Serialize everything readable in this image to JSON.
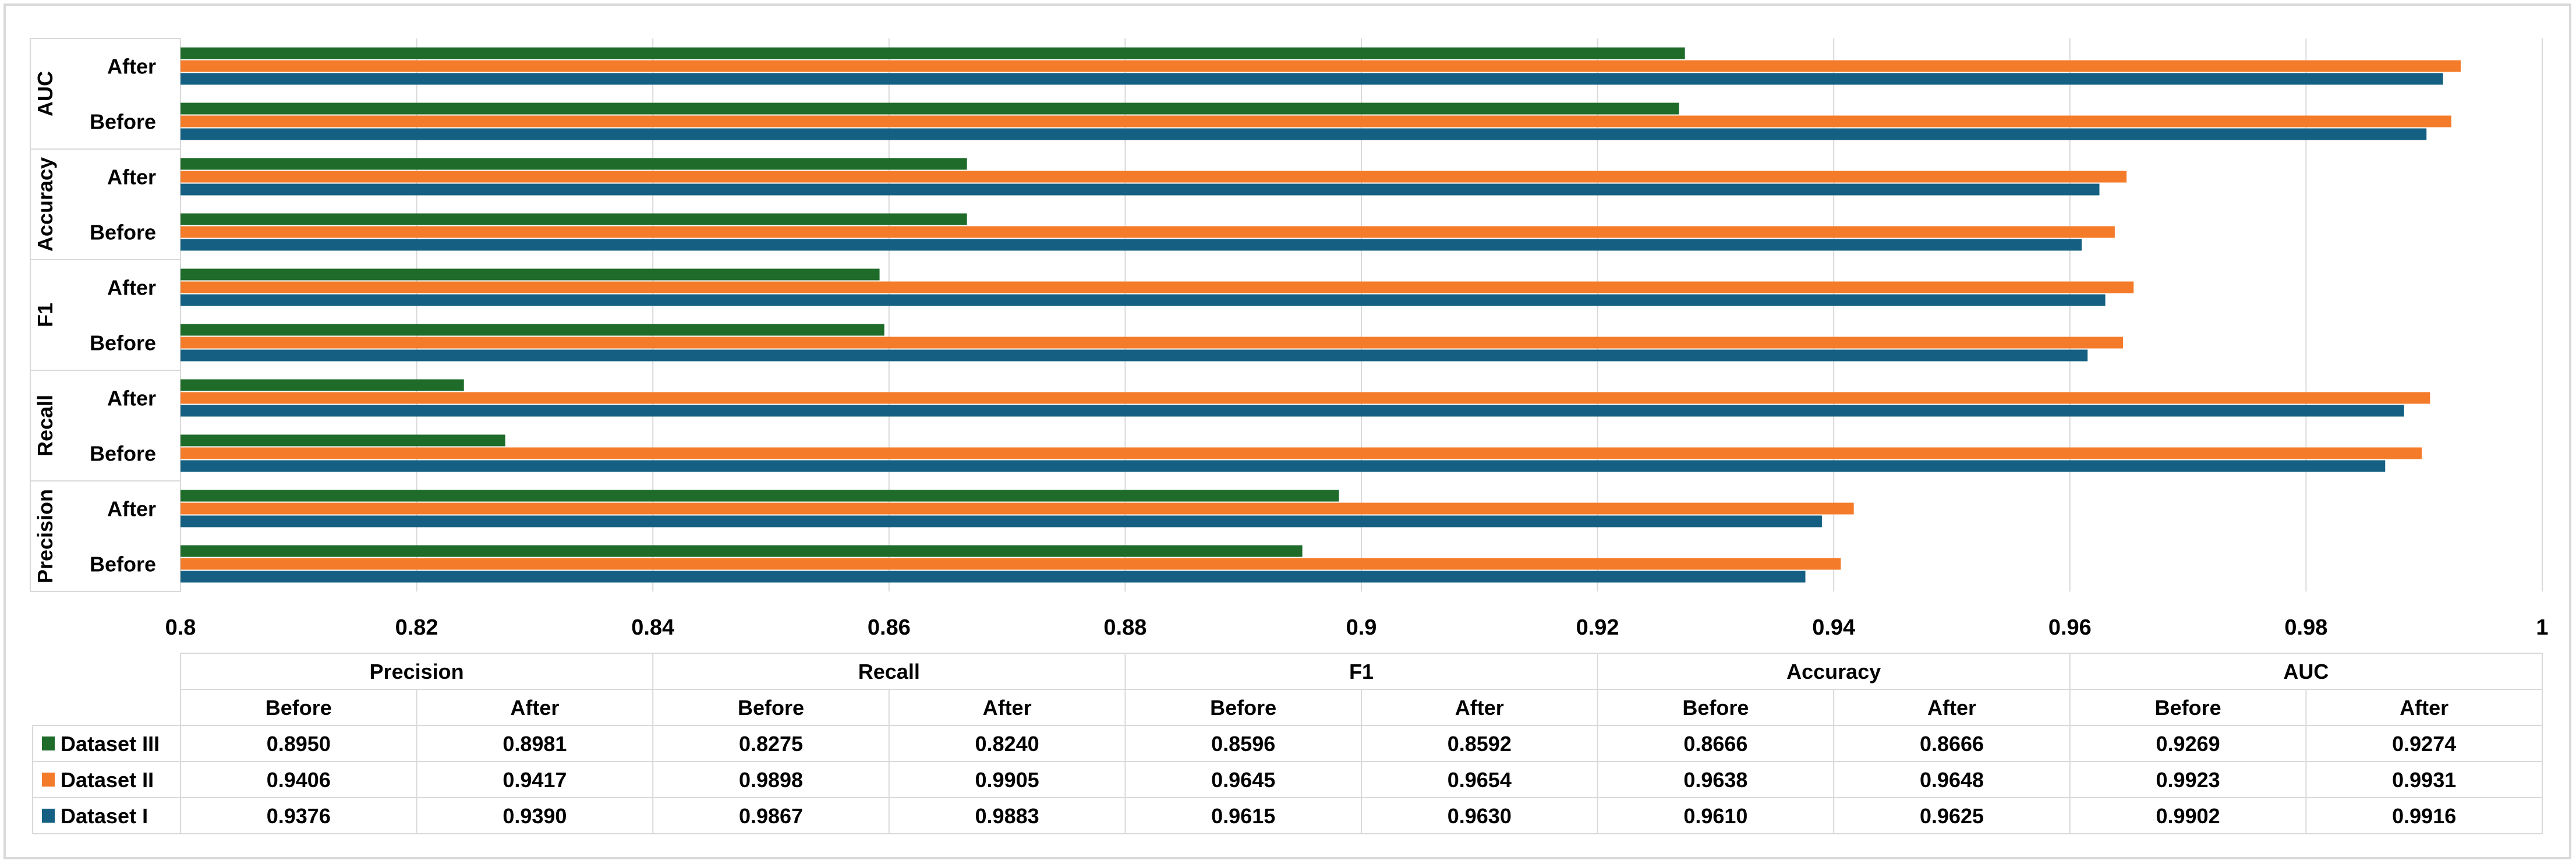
{
  "chart_data": {
    "type": "bar",
    "orientation": "horizontal",
    "metrics": [
      "Precision",
      "Recall",
      "F1",
      "Accuracy",
      "AUC"
    ],
    "phases": [
      "Before",
      "After"
    ],
    "series": [
      {
        "name": "Dataset III",
        "color": "#1e6b2a",
        "values": [
          0.895,
          0.8981,
          0.8275,
          0.824,
          0.8596,
          0.8592,
          0.8666,
          0.8666,
          0.9269,
          0.9274
        ],
        "labels": [
          "0.8950",
          "0.8981",
          "0.8275",
          "0.8240",
          "0.8596",
          "0.8592",
          "0.8666",
          "0.8666",
          "0.9269",
          "0.9274"
        ]
      },
      {
        "name": "Dataset II",
        "color": "#f47b2a",
        "values": [
          0.9406,
          0.9417,
          0.9898,
          0.9905,
          0.9645,
          0.9654,
          0.9638,
          0.9648,
          0.9923,
          0.9931
        ],
        "labels": [
          "0.9406",
          "0.9417",
          "0.9898",
          "0.9905",
          "0.9645",
          "0.9654",
          "0.9638",
          "0.9648",
          "0.9923",
          "0.9931"
        ]
      },
      {
        "name": "Dataset I",
        "color": "#156082",
        "values": [
          0.9376,
          0.939,
          0.9867,
          0.9883,
          0.9615,
          0.963,
          0.961,
          0.9625,
          0.9902,
          0.9916
        ],
        "labels": [
          "0.9376",
          "0.9390",
          "0.9867",
          "0.9883",
          "0.9615",
          "0.9630",
          "0.9610",
          "0.9625",
          "0.9902",
          "0.9916"
        ]
      }
    ],
    "xlim": [
      0.8,
      1.0
    ],
    "xticks": [
      0.8,
      0.82,
      0.84,
      0.86,
      0.88,
      0.9,
      0.92,
      0.94,
      0.96,
      0.98,
      1.0
    ],
    "xtick_labels": [
      "0.8",
      "0.82",
      "0.84",
      "0.86",
      "0.88",
      "0.9",
      "0.92",
      "0.94",
      "0.96",
      "0.98",
      "1"
    ],
    "grid": true,
    "legend": "data table below chart",
    "data_table": true
  }
}
